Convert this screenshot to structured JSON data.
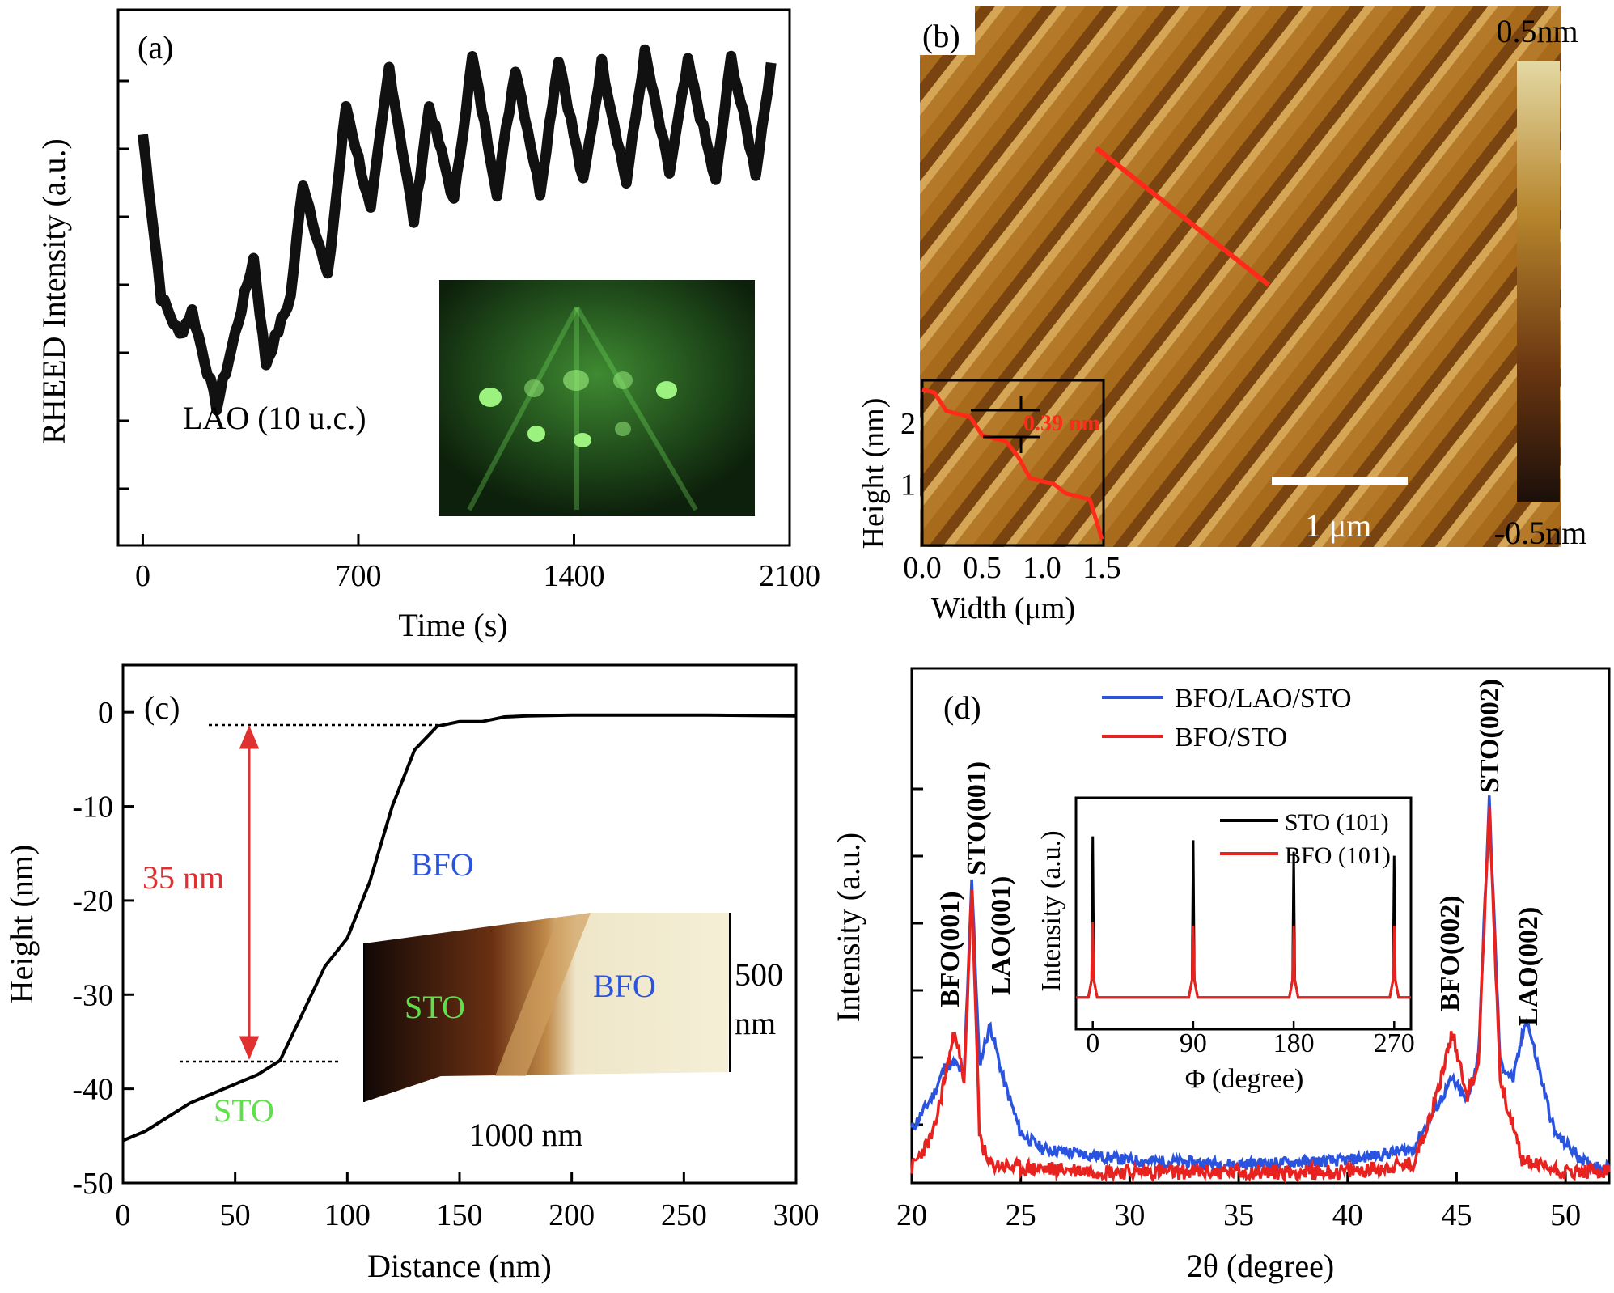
{
  "panels": {
    "a": {
      "label": "(a)"
    },
    "b": {
      "label": "(b)"
    },
    "c": {
      "label": "(c)"
    },
    "d": {
      "label": "(d)"
    }
  },
  "colors": {
    "blue": "#2a54e0",
    "red": "#e8221f",
    "green": "#5fe04a",
    "black": "#111111"
  },
  "chart_data": [
    {
      "id": "a",
      "type": "line",
      "xlabel": "Time (s)",
      "ylabel": "RHEED Intensity (a.u.)",
      "xlim": [
        -80,
        2100
      ],
      "x_ticks": [
        0,
        700,
        1400,
        2100
      ],
      "annotation": "LAO (10 u.c.)",
      "inset": "RHEED diffraction pattern (green spots)",
      "series": [
        {
          "x": [
            0,
            60,
            120,
            160,
            240,
            280,
            360,
            400,
            480,
            520,
            600,
            660,
            740,
            800,
            880,
            930,
            1010,
            1070,
            1150,
            1210,
            1290,
            1350,
            1430,
            1490,
            1570,
            1630,
            1710,
            1770,
            1860,
            1910,
            1990,
            2040
          ],
          "y": [
            0.82,
            0.48,
            0.4,
            0.45,
            0.25,
            0.35,
            0.56,
            0.34,
            0.48,
            0.72,
            0.52,
            0.88,
            0.66,
            0.96,
            0.64,
            0.88,
            0.68,
            0.98,
            0.7,
            0.96,
            0.7,
            0.98,
            0.72,
            0.97,
            0.72,
            0.99,
            0.74,
            0.97,
            0.72,
            0.98,
            0.74,
            0.97
          ]
        }
      ]
    },
    {
      "id": "b",
      "type": "heatmap",
      "colorbar_max": "0.5nm",
      "colorbar_min": "-0.5nm",
      "scalebar": "1 μm",
      "inset": {
        "type": "line",
        "xlabel": "Width (μm)",
        "ylabel": "Height (nm)",
        "x_ticks": [
          "0.0",
          "0.5",
          "1.0",
          "1.5"
        ],
        "y_ticks": [
          "1",
          "2"
        ],
        "step_label": "0.39 nm",
        "x": [
          0,
          0.1,
          0.2,
          0.3,
          0.4,
          0.5,
          0.6,
          0.7,
          0.8,
          0.9,
          1.0,
          1.1,
          1.2,
          1.3,
          1.4,
          1.5
        ],
        "y": [
          2.55,
          2.5,
          2.2,
          2.15,
          2.1,
          1.8,
          1.75,
          1.7,
          1.45,
          1.1,
          1.05,
          1.0,
          0.85,
          0.8,
          0.75,
          0.1
        ]
      }
    },
    {
      "id": "c",
      "type": "line",
      "xlabel": "Distance (nm)",
      "ylabel": "Height (nm)",
      "xlim": [
        0,
        300
      ],
      "ylim": [
        -50,
        5
      ],
      "x_ticks": [
        0,
        50,
        100,
        150,
        200,
        250,
        300
      ],
      "y_ticks": [
        0,
        -10,
        -20,
        -30,
        -40,
        -50
      ],
      "annotations": {
        "thickness": "35 nm",
        "bfo": "BFO",
        "sto": "STO"
      },
      "inset": {
        "sto": "STO",
        "bfo": "BFO",
        "z": "500",
        "z_unit": "nm",
        "width": "1000 nm"
      },
      "series": [
        {
          "x": [
            0,
            10,
            20,
            30,
            40,
            50,
            60,
            70,
            80,
            90,
            100,
            110,
            120,
            130,
            140,
            150,
            160,
            170,
            180,
            200,
            230,
            260,
            300
          ],
          "y": [
            -45.5,
            -44.5,
            -43,
            -41.5,
            -40.5,
            -39.5,
            -38.5,
            -37,
            -32,
            -27,
            -24,
            -18,
            -10,
            -4,
            -1.5,
            -1,
            -1,
            -0.5,
            -0.4,
            -0.3,
            -0.3,
            -0.3,
            -0.4
          ]
        }
      ]
    },
    {
      "id": "d",
      "type": "line",
      "xlabel": "2θ (degree)",
      "ylabel": "Intensity (a.u.)",
      "xlim": [
        20,
        52
      ],
      "x_ticks": [
        20,
        25,
        30,
        35,
        40,
        45,
        50
      ],
      "legend_position": "top-center",
      "peak_labels": [
        "BFO(001)",
        "STO(001)",
        "LAO(001)",
        "BFO(002)",
        "STO(002)",
        "LAO(002)"
      ],
      "series": [
        {
          "name": "BFO/LAO/STO",
          "x": [
            20,
            21,
            21.5,
            22,
            22.4,
            22.75,
            23.1,
            23.6,
            24.2,
            25,
            26,
            30,
            35,
            40,
            43,
            44,
            44.8,
            45.5,
            46,
            46.5,
            47,
            47.6,
            48.2,
            48.8,
            49.5,
            51,
            52
          ],
          "y": [
            0.13,
            0.22,
            0.29,
            0.3,
            0.27,
            0.78,
            0.3,
            0.4,
            0.26,
            0.12,
            0.08,
            0.05,
            0.04,
            0.05,
            0.08,
            0.18,
            0.26,
            0.2,
            0.32,
            0.98,
            0.3,
            0.26,
            0.42,
            0.28,
            0.12,
            0.04,
            0.03
          ]
        },
        {
          "name": "BFO/STO",
          "x": [
            20,
            21,
            21.5,
            22,
            22.4,
            22.75,
            23.1,
            23.5,
            25,
            30,
            35,
            40,
            43,
            44,
            44.8,
            45.5,
            46,
            46.5,
            47,
            48,
            50,
            52
          ],
          "y": [
            0.03,
            0.12,
            0.26,
            0.39,
            0.24,
            0.76,
            0.12,
            0.04,
            0.03,
            0.02,
            0.02,
            0.02,
            0.04,
            0.2,
            0.38,
            0.22,
            0.3,
            0.96,
            0.26,
            0.05,
            0.02,
            0.02
          ]
        }
      ],
      "inset": {
        "type": "line",
        "xlabel": "Φ (degree)",
        "ylabel": "Intensity (a.u.)",
        "x_ticks": [
          0,
          90,
          180,
          270
        ],
        "xlim": [
          -15,
          285
        ],
        "series": [
          {
            "name": "STO (101)",
            "peaks": [
              0,
              90,
              180,
              270
            ],
            "heights": [
              0.86,
              0.84,
              0.78,
              0.76
            ]
          },
          {
            "name": "BFO (101)",
            "peaks": [
              0,
              90,
              180,
              270
            ],
            "heights": [
              0.42,
              0.4,
              0.4,
              0.4
            ]
          }
        ]
      }
    }
  ]
}
